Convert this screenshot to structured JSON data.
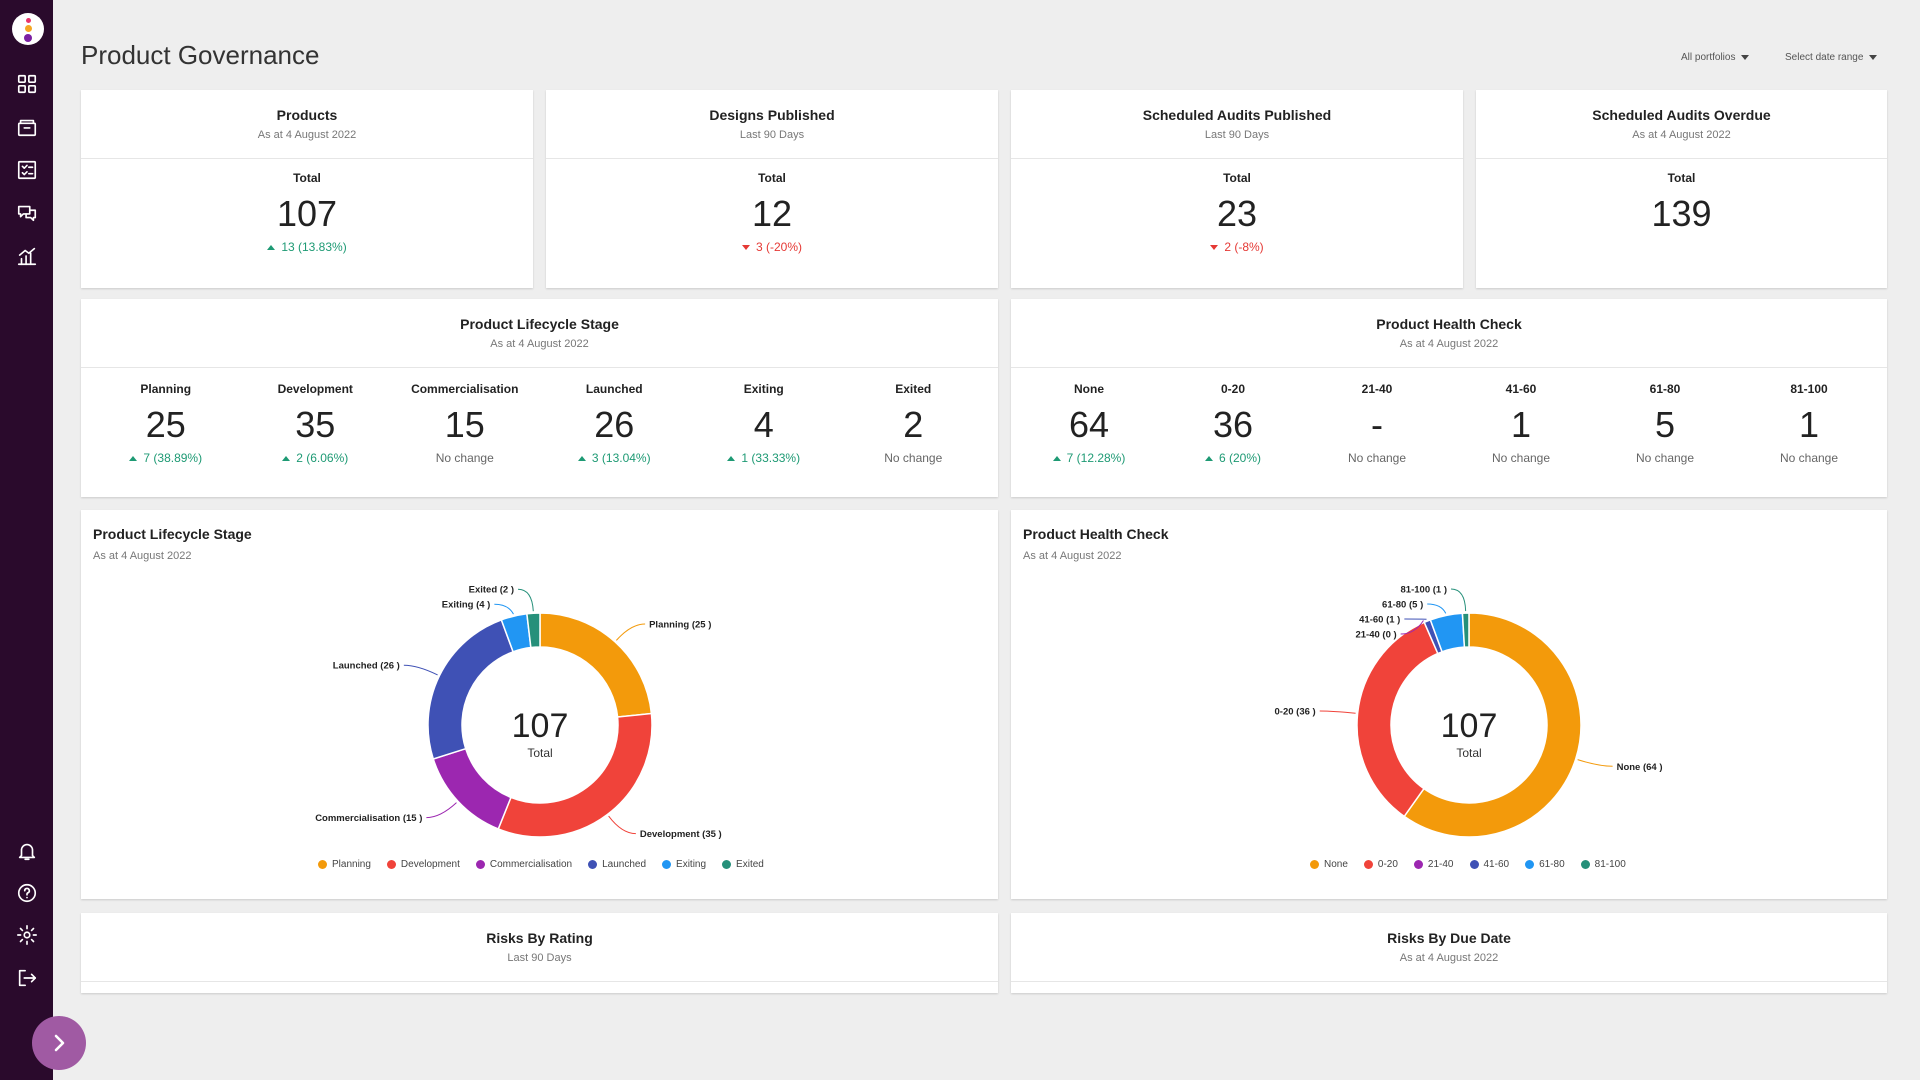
{
  "page": {
    "title": "Product Governance"
  },
  "filters": {
    "portfolio": "All portfolios",
    "date_range": "Select date range"
  },
  "kpis": [
    {
      "title": "Products",
      "subtitle": "As at 4 August 2022",
      "label": "Total",
      "value": "107",
      "change": "13 (13.83%)",
      "trend": "up"
    },
    {
      "title": "Designs Published",
      "subtitle": "Last 90 Days",
      "label": "Total",
      "value": "12",
      "change": "3 (-20%)",
      "trend": "down"
    },
    {
      "title": "Scheduled Audits Published",
      "subtitle": "Last 90 Days",
      "label": "Total",
      "value": "23",
      "change": "2 (-8%)",
      "trend": "down"
    },
    {
      "title": "Scheduled Audits Overdue",
      "subtitle": "As at 4 August 2022",
      "label": "Total",
      "value": "139",
      "change": "",
      "trend": ""
    }
  ],
  "lifecycle_stats": {
    "title": "Product Lifecycle Stage",
    "subtitle": "As at 4 August 2022",
    "items": [
      {
        "label": "Planning",
        "value": "25",
        "change": "7 (38.89%)",
        "trend": "up"
      },
      {
        "label": "Development",
        "value": "35",
        "change": "2 (6.06%)",
        "trend": "up"
      },
      {
        "label": "Commercialisation",
        "value": "15",
        "change": "No change",
        "trend": "none"
      },
      {
        "label": "Launched",
        "value": "26",
        "change": "3 (13.04%)",
        "trend": "up"
      },
      {
        "label": "Exiting",
        "value": "4",
        "change": "1 (33.33%)",
        "trend": "up"
      },
      {
        "label": "Exited",
        "value": "2",
        "change": "No change",
        "trend": "none"
      }
    ]
  },
  "health_stats": {
    "title": "Product Health Check",
    "subtitle": "As at 4 August 2022",
    "items": [
      {
        "label": "None",
        "value": "64",
        "change": "7 (12.28%)",
        "trend": "up"
      },
      {
        "label": "0-20",
        "value": "36",
        "change": "6 (20%)",
        "trend": "up"
      },
      {
        "label": "21-40",
        "value": "-",
        "change": "No change",
        "trend": "none"
      },
      {
        "label": "41-60",
        "value": "1",
        "change": "No change",
        "trend": "none"
      },
      {
        "label": "61-80",
        "value": "5",
        "change": "No change",
        "trend": "none"
      },
      {
        "label": "81-100",
        "value": "1",
        "change": "No change",
        "trend": "none"
      }
    ]
  },
  "risks_rating": {
    "title": "Risks By Rating",
    "subtitle": "Last 90 Days"
  },
  "risks_due": {
    "title": "Risks By Due Date",
    "subtitle": "As at 4 August 2022"
  },
  "chart_data": [
    {
      "type": "pie",
      "title": "Product Lifecycle Stage",
      "subtitle": "As at 4 August 2022",
      "center_value": "107",
      "center_label": "Total",
      "categories": [
        "Planning",
        "Development",
        "Commercialisation",
        "Launched",
        "Exiting",
        "Exited"
      ],
      "values": [
        25,
        35,
        15,
        26,
        4,
        2
      ],
      "colors": [
        "#f39a0b",
        "#f0433a",
        "#9c27b0",
        "#3f51b5",
        "#2196f3",
        "#26907a"
      ],
      "slice_labels": [
        "Planning (25 )",
        "Development (35 )",
        "Commercialisation (15 )",
        "Launched (26 )",
        "Exiting (4 )",
        "Exited (2 )"
      ],
      "legend": [
        "Planning",
        "Development",
        "Commercialisation",
        "Launched",
        "Exiting",
        "Exited"
      ]
    },
    {
      "type": "pie",
      "title": "Product Health Check",
      "subtitle": "As at 4 August 2022",
      "center_value": "107",
      "center_label": "Total",
      "categories": [
        "None",
        "0-20",
        "21-40",
        "41-60",
        "61-80",
        "81-100"
      ],
      "values": [
        64,
        36,
        0,
        1,
        5,
        1
      ],
      "colors": [
        "#f39a0b",
        "#f0433a",
        "#9c27b0",
        "#3f51b5",
        "#2196f3",
        "#26907a"
      ],
      "slice_labels": [
        "None (64 )",
        "0-20 (36 )",
        "21-40 (0 )",
        "41-60 (1 )",
        "61-80 (5 )",
        "81-100 (1 )"
      ],
      "legend": [
        "None",
        "0-20",
        "21-40",
        "41-60",
        "61-80",
        "81-100"
      ]
    }
  ]
}
